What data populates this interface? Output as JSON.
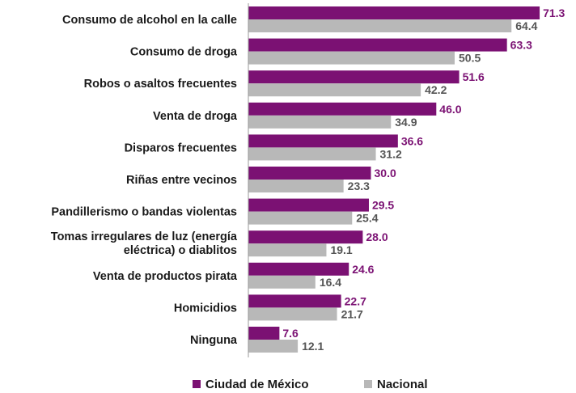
{
  "chart_data": {
    "type": "bar",
    "orientation": "horizontal",
    "categories": [
      "Consumo de alcohol en la calle",
      "Consumo de droga",
      "Robos o asaltos frecuentes",
      "Venta de droga",
      "Disparos frecuentes",
      "Riñas entre vecinos",
      "Pandillerismo o bandas violentas",
      "Tomas irregulares de luz (energía eléctrica) o diablitos",
      "Venta de productos pirata",
      "Homicidios",
      "Ninguna"
    ],
    "category_lines": [
      [
        "Consumo de alcohol en la calle"
      ],
      [
        "Consumo de droga"
      ],
      [
        "Robos o asaltos frecuentes"
      ],
      [
        "Venta de droga"
      ],
      [
        "Disparos frecuentes"
      ],
      [
        "Riñas entre vecinos"
      ],
      [
        "Pandillerismo o bandas violentas"
      ],
      [
        "Tomas irregulares de luz (energía",
        "eléctrica) o diablitos"
      ],
      [
        "Venta de productos pirata"
      ],
      [
        "Homicidios"
      ],
      [
        "Ninguna"
      ]
    ],
    "series": [
      {
        "name": "Ciudad de México",
        "color": "#7b1173",
        "values": [
          71.3,
          63.3,
          51.6,
          46.0,
          36.6,
          30.0,
          29.5,
          28.0,
          24.6,
          22.7,
          7.6
        ],
        "labels": [
          "71.3",
          "63.3",
          "51.6",
          "46.0",
          "36.6",
          "30.0",
          "29.5",
          "28.0",
          "24.6",
          "22.7",
          "7.6"
        ]
      },
      {
        "name": "Nacional",
        "color": "#b8b8b8",
        "values": [
          64.4,
          50.5,
          42.2,
          34.9,
          31.2,
          23.3,
          25.4,
          19.1,
          16.4,
          21.7,
          12.1
        ],
        "labels": [
          "64.4",
          "50.5",
          "42.2",
          "34.9",
          "31.2",
          "23.3",
          "25.4",
          "19.1",
          "16.4",
          "21.7",
          "12.1"
        ]
      }
    ],
    "xlim": [
      0,
      75
    ],
    "grid": false,
    "legend_position": "bottom-center",
    "value_label_colors": {
      "primary": "#7b1173",
      "secondary": "#555555"
    }
  }
}
